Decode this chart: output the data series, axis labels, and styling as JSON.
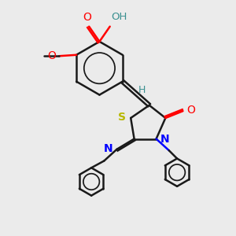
{
  "bg_color": "#ebebeb",
  "bond_color": "#1a1a1a",
  "bond_width": 1.8,
  "figsize": [
    3.0,
    3.0
  ],
  "dpi": 100,
  "xlim": [
    0,
    10
  ],
  "ylim": [
    0,
    10
  ]
}
